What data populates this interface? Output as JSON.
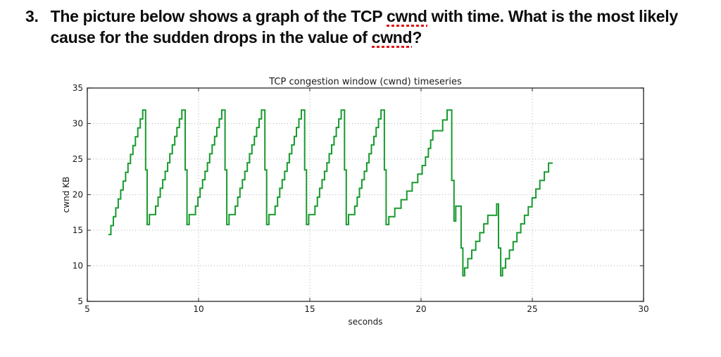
{
  "question": {
    "number": "3.",
    "line1_pre": "The picture below shows a graph of the TCP ",
    "line1_term": "cwnd",
    "line1_post": " with time. What is the most likely cause for the sudden drops in the value of ",
    "line2_term": "cwnd",
    "line2_post": "?",
    "underline_color": "#e01111",
    "text_color": "#0d0d0d"
  },
  "chart_data": {
    "type": "line",
    "title": "TCP congestion window (cwnd) timeseries",
    "xlabel": "seconds",
    "ylabel": "cwnd KB",
    "xlim": [
      5,
      30
    ],
    "ylim": [
      5,
      35
    ],
    "xticks": [
      5,
      10,
      15,
      20,
      25,
      30
    ],
    "yticks": [
      5,
      10,
      15,
      20,
      25,
      30,
      35
    ],
    "grid": true,
    "grid_style": "dotted",
    "grid_color": "#b3b3b3",
    "axis_color": "#4d4d4d",
    "legend": "none",
    "line_color": "#189a2e",
    "line_width": 2,
    "background": "#ffffff",
    "series": [
      {
        "name": "cwnd",
        "mode": "step-after",
        "points": [
          [
            5.95,
            14.4
          ],
          [
            6.06,
            15.65
          ],
          [
            6.17,
            16.9
          ],
          [
            6.28,
            18.15
          ],
          [
            6.39,
            19.4
          ],
          [
            6.5,
            20.65
          ],
          [
            6.61,
            21.9
          ],
          [
            6.72,
            23.15
          ],
          [
            6.83,
            24.4
          ],
          [
            6.94,
            25.65
          ],
          [
            7.05,
            26.9
          ],
          [
            7.16,
            28.15
          ],
          [
            7.27,
            29.4
          ],
          [
            7.38,
            30.65
          ],
          [
            7.49,
            31.9
          ],
          [
            7.62,
            23.5
          ],
          [
            7.69,
            15.8
          ],
          [
            7.79,
            17.2
          ],
          [
            8.07,
            18.4
          ],
          [
            8.18,
            19.65
          ],
          [
            8.28,
            20.9
          ],
          [
            8.39,
            22.1
          ],
          [
            8.5,
            23.3
          ],
          [
            8.61,
            24.5
          ],
          [
            8.71,
            25.75
          ],
          [
            8.82,
            27.0
          ],
          [
            8.93,
            28.2
          ],
          [
            9.03,
            29.45
          ],
          [
            9.14,
            30.65
          ],
          [
            9.25,
            31.9
          ],
          [
            9.4,
            23.5
          ],
          [
            9.48,
            15.8
          ],
          [
            9.58,
            17.2
          ],
          [
            9.86,
            18.4
          ],
          [
            9.97,
            19.65
          ],
          [
            10.07,
            20.9
          ],
          [
            10.18,
            22.1
          ],
          [
            10.29,
            23.3
          ],
          [
            10.4,
            24.5
          ],
          [
            10.5,
            25.75
          ],
          [
            10.61,
            27.0
          ],
          [
            10.72,
            28.2
          ],
          [
            10.82,
            29.45
          ],
          [
            10.93,
            30.65
          ],
          [
            11.04,
            31.9
          ],
          [
            11.19,
            23.5
          ],
          [
            11.27,
            15.8
          ],
          [
            11.37,
            17.2
          ],
          [
            11.65,
            18.4
          ],
          [
            11.76,
            19.65
          ],
          [
            11.86,
            20.9
          ],
          [
            11.97,
            22.1
          ],
          [
            12.08,
            23.3
          ],
          [
            12.19,
            24.5
          ],
          [
            12.29,
            25.75
          ],
          [
            12.4,
            27.0
          ],
          [
            12.51,
            28.2
          ],
          [
            12.61,
            29.45
          ],
          [
            12.72,
            30.65
          ],
          [
            12.83,
            31.9
          ],
          [
            12.98,
            23.5
          ],
          [
            13.06,
            15.8
          ],
          [
            13.16,
            17.2
          ],
          [
            13.44,
            18.4
          ],
          [
            13.55,
            19.65
          ],
          [
            13.65,
            20.9
          ],
          [
            13.76,
            22.1
          ],
          [
            13.87,
            23.3
          ],
          [
            13.98,
            24.5
          ],
          [
            14.08,
            25.75
          ],
          [
            14.19,
            27.0
          ],
          [
            14.3,
            28.2
          ],
          [
            14.4,
            29.45
          ],
          [
            14.51,
            30.65
          ],
          [
            14.62,
            31.9
          ],
          [
            14.77,
            23.5
          ],
          [
            14.85,
            15.8
          ],
          [
            14.95,
            17.2
          ],
          [
            15.23,
            18.4
          ],
          [
            15.34,
            19.65
          ],
          [
            15.44,
            20.9
          ],
          [
            15.55,
            22.1
          ],
          [
            15.66,
            23.3
          ],
          [
            15.77,
            24.5
          ],
          [
            15.87,
            25.75
          ],
          [
            15.98,
            27.0
          ],
          [
            16.09,
            28.2
          ],
          [
            16.19,
            29.45
          ],
          [
            16.3,
            30.65
          ],
          [
            16.41,
            31.9
          ],
          [
            16.56,
            23.5
          ],
          [
            16.64,
            15.8
          ],
          [
            16.74,
            17.2
          ],
          [
            17.02,
            18.4
          ],
          [
            17.13,
            19.65
          ],
          [
            17.23,
            20.9
          ],
          [
            17.34,
            22.1
          ],
          [
            17.45,
            23.3
          ],
          [
            17.56,
            24.5
          ],
          [
            17.66,
            25.75
          ],
          [
            17.77,
            27.0
          ],
          [
            17.88,
            28.2
          ],
          [
            17.98,
            29.45
          ],
          [
            18.09,
            30.65
          ],
          [
            18.2,
            31.9
          ],
          [
            18.35,
            23.5
          ],
          [
            18.43,
            15.8
          ],
          [
            18.55,
            16.9
          ],
          [
            18.82,
            18.1
          ],
          [
            19.1,
            19.3
          ],
          [
            19.36,
            20.5
          ],
          [
            19.6,
            21.7
          ],
          [
            19.85,
            22.9
          ],
          [
            20.05,
            24.1
          ],
          [
            20.2,
            25.3
          ],
          [
            20.33,
            26.5
          ],
          [
            20.43,
            27.7
          ],
          [
            20.53,
            29.0
          ],
          [
            20.97,
            30.5
          ],
          [
            21.17,
            31.9
          ],
          [
            21.38,
            22.0
          ],
          [
            21.48,
            16.3
          ],
          [
            21.56,
            18.4
          ],
          [
            21.8,
            12.5
          ],
          [
            21.88,
            8.6
          ],
          [
            21.96,
            9.7
          ],
          [
            22.1,
            11.0
          ],
          [
            22.28,
            12.2
          ],
          [
            22.46,
            13.45
          ],
          [
            22.64,
            14.65
          ],
          [
            22.82,
            15.9
          ],
          [
            23.0,
            17.1
          ],
          [
            23.4,
            18.7
          ],
          [
            23.48,
            12.5
          ],
          [
            23.58,
            8.6
          ],
          [
            23.66,
            9.7
          ],
          [
            23.8,
            11.0
          ],
          [
            23.97,
            12.2
          ],
          [
            24.14,
            13.4
          ],
          [
            24.31,
            14.65
          ],
          [
            24.48,
            15.9
          ],
          [
            24.65,
            17.1
          ],
          [
            24.82,
            18.3
          ],
          [
            24.99,
            19.55
          ],
          [
            25.16,
            20.8
          ],
          [
            25.34,
            22.0
          ],
          [
            25.54,
            23.2
          ],
          [
            25.73,
            24.45
          ],
          [
            25.92,
            24.45
          ]
        ]
      }
    ]
  }
}
